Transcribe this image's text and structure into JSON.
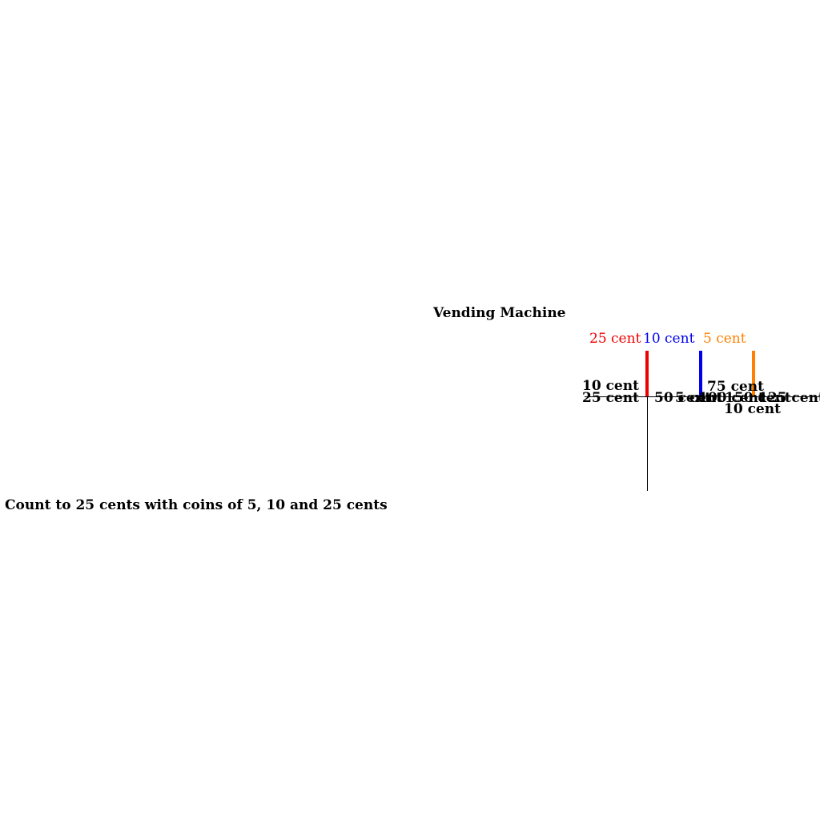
{
  "title": "Vending Machine",
  "caption": "Count to 25 cents with coins of 5, 10 and 25 cents",
  "coins": [
    {
      "label": "25 cent",
      "color": "#ee0000"
    },
    {
      "label": "10 cent",
      "color": "#0000ee"
    },
    {
      "label": "5 cent",
      "color": "#ff8000"
    }
  ],
  "axis_labels": {
    "left_top": "10 cent",
    "left_bottom": "25 cent",
    "mid_a": "50 cent",
    "mid_b": "5 cent",
    "mid_c": "100 cent",
    "mid_d": "150 cent",
    "mid_e": "125 cent",
    "upper_right": "75 cent",
    "lower_right": "10 cent"
  }
}
